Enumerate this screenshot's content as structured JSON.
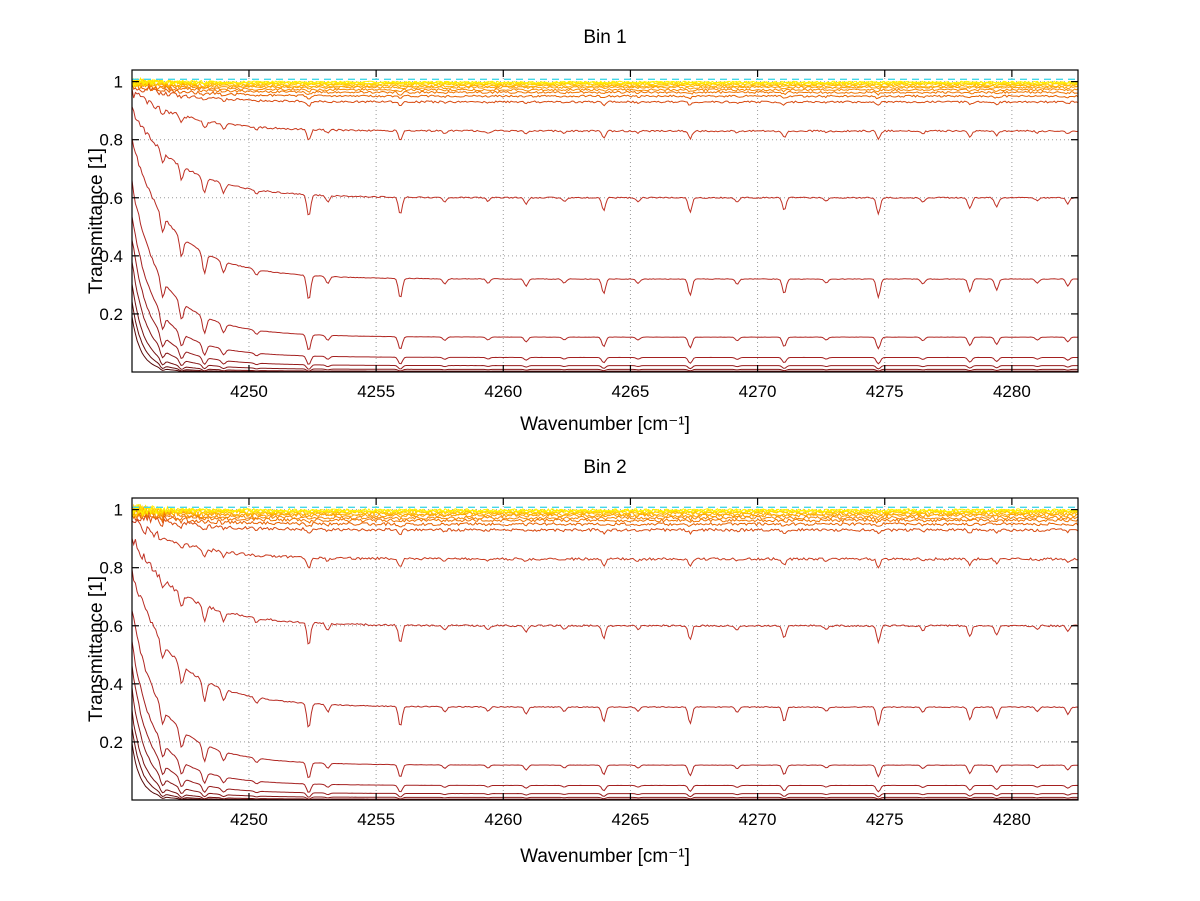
{
  "figure": {
    "background": "#FFFFFF"
  },
  "chart_data": [
    {
      "type": "line",
      "title": "Bin 1",
      "xlabel": "Wavenumber [cm⁻¹]",
      "ylabel": "Transmittance [1]",
      "xlim": [
        4245.4,
        4282.6
      ],
      "ylim": [
        0,
        1.04
      ],
      "xticks": [
        4250,
        4255,
        4260,
        4265,
        4270,
        4275,
        4280
      ],
      "yticks": [
        0.2,
        0.4,
        0.6,
        0.8,
        1
      ],
      "grid": true,
      "band_edge": {
        "x0": 4244.9,
        "tau": 2.2
      },
      "line_halfwidth": 0.1,
      "noise_seed": 11,
      "noise_scale": 1.0,
      "reference_line": {
        "level": 1.008,
        "color": "#44D7E8",
        "dash": "7 5"
      },
      "absorption_lines": [
        {
          "center": 4246.6,
          "strength": 0.1
        },
        {
          "center": 4247.35,
          "strength": 0.14
        },
        {
          "center": 4248.25,
          "strength": 0.17
        },
        {
          "center": 4249.0,
          "strength": 0.1
        },
        {
          "center": 4250.3,
          "strength": 0.05
        },
        {
          "center": 4252.35,
          "strength": 0.26
        },
        {
          "center": 4253.1,
          "strength": 0.07
        },
        {
          "center": 4255.95,
          "strength": 0.21
        },
        {
          "center": 4257.7,
          "strength": 0.05
        },
        {
          "center": 4259.4,
          "strength": 0.04
        },
        {
          "center": 4260.9,
          "strength": 0.07
        },
        {
          "center": 4262.4,
          "strength": 0.04
        },
        {
          "center": 4263.95,
          "strength": 0.15
        },
        {
          "center": 4265.3,
          "strength": 0.04
        },
        {
          "center": 4267.35,
          "strength": 0.17
        },
        {
          "center": 4269.2,
          "strength": 0.05
        },
        {
          "center": 4271.05,
          "strength": 0.15
        },
        {
          "center": 4272.7,
          "strength": 0.04
        },
        {
          "center": 4274.75,
          "strength": 0.19
        },
        {
          "center": 4276.5,
          "strength": 0.05
        },
        {
          "center": 4278.35,
          "strength": 0.13
        },
        {
          "center": 4279.4,
          "strength": 0.11
        },
        {
          "center": 4281.0,
          "strength": 0.04
        },
        {
          "center": 4282.2,
          "strength": 0.07
        }
      ],
      "series": [
        {
          "flat_level": 0.998,
          "color": "#FFF200"
        },
        {
          "flat_level": 0.996,
          "color": "#FFE600"
        },
        {
          "flat_level": 0.993,
          "color": "#FFD600"
        },
        {
          "flat_level": 0.99,
          "color": "#FFC400"
        },
        {
          "flat_level": 0.985,
          "color": "#FFB000"
        },
        {
          "flat_level": 0.98,
          "color": "#FC9C00"
        },
        {
          "flat_level": 0.972,
          "color": "#F58800"
        },
        {
          "flat_level": 0.963,
          "color": "#EE7400"
        },
        {
          "flat_level": 0.95,
          "color": "#E66000"
        },
        {
          "flat_level": 0.93,
          "color": "#D84A10"
        },
        {
          "flat_level": 0.83,
          "color": "#C93A1E"
        },
        {
          "flat_level": 0.6,
          "color": "#C03226"
        },
        {
          "flat_level": 0.32,
          "color": "#B82C24"
        },
        {
          "flat_level": 0.12,
          "color": "#B02622"
        },
        {
          "flat_level": 0.05,
          "color": "#A42020"
        },
        {
          "flat_level": 0.022,
          "color": "#961C1C"
        },
        {
          "flat_level": 0.009,
          "color": "#861818"
        },
        {
          "flat_level": 0.003,
          "color": "#761212"
        },
        {
          "flat_level": 0.001,
          "color": "#660E0E"
        },
        {
          "flat_level": 0.0003,
          "color": "#560A0A"
        }
      ]
    },
    {
      "type": "line",
      "title": "Bin 2",
      "xlabel": "Wavenumber [cm⁻¹]",
      "ylabel": "Transmittance [1]",
      "xlim": [
        4245.4,
        4282.6
      ],
      "ylim": [
        0,
        1.04
      ],
      "xticks": [
        4250,
        4255,
        4260,
        4265,
        4270,
        4275,
        4280
      ],
      "yticks": [
        0.2,
        0.4,
        0.6,
        0.8,
        1
      ],
      "grid": true,
      "band_edge": {
        "x0": 4244.9,
        "tau": 2.2
      },
      "line_halfwidth": 0.1,
      "noise_seed": 77,
      "noise_scale": 1.5,
      "reference_line": {
        "level": 1.008,
        "color": "#44D7E8",
        "dash": "7 5"
      },
      "absorption_lines": [
        {
          "center": 4246.6,
          "strength": 0.1
        },
        {
          "center": 4247.35,
          "strength": 0.14
        },
        {
          "center": 4248.25,
          "strength": 0.17
        },
        {
          "center": 4249.0,
          "strength": 0.1
        },
        {
          "center": 4250.3,
          "strength": 0.05
        },
        {
          "center": 4252.35,
          "strength": 0.26
        },
        {
          "center": 4253.1,
          "strength": 0.07
        },
        {
          "center": 4255.95,
          "strength": 0.21
        },
        {
          "center": 4257.7,
          "strength": 0.05
        },
        {
          "center": 4259.4,
          "strength": 0.04
        },
        {
          "center": 4260.9,
          "strength": 0.07
        },
        {
          "center": 4262.4,
          "strength": 0.04
        },
        {
          "center": 4263.95,
          "strength": 0.15
        },
        {
          "center": 4265.3,
          "strength": 0.04
        },
        {
          "center": 4267.35,
          "strength": 0.17
        },
        {
          "center": 4269.2,
          "strength": 0.05
        },
        {
          "center": 4271.05,
          "strength": 0.15
        },
        {
          "center": 4272.7,
          "strength": 0.04
        },
        {
          "center": 4274.75,
          "strength": 0.19
        },
        {
          "center": 4276.5,
          "strength": 0.05
        },
        {
          "center": 4278.35,
          "strength": 0.13
        },
        {
          "center": 4279.4,
          "strength": 0.11
        },
        {
          "center": 4281.0,
          "strength": 0.04
        },
        {
          "center": 4282.2,
          "strength": 0.07
        }
      ],
      "series": [
        {
          "flat_level": 0.998,
          "color": "#FFF200"
        },
        {
          "flat_level": 0.996,
          "color": "#FFE600"
        },
        {
          "flat_level": 0.993,
          "color": "#FFD600"
        },
        {
          "flat_level": 0.99,
          "color": "#FFC400"
        },
        {
          "flat_level": 0.985,
          "color": "#FFB000"
        },
        {
          "flat_level": 0.98,
          "color": "#FC9C00"
        },
        {
          "flat_level": 0.972,
          "color": "#F58800"
        },
        {
          "flat_level": 0.963,
          "color": "#EE7400"
        },
        {
          "flat_level": 0.95,
          "color": "#E66000"
        },
        {
          "flat_level": 0.93,
          "color": "#D84A10"
        },
        {
          "flat_level": 0.83,
          "color": "#C93A1E"
        },
        {
          "flat_level": 0.6,
          "color": "#C03226"
        },
        {
          "flat_level": 0.32,
          "color": "#B82C24"
        },
        {
          "flat_level": 0.12,
          "color": "#B02622"
        },
        {
          "flat_level": 0.05,
          "color": "#A42020"
        },
        {
          "flat_level": 0.022,
          "color": "#961C1C"
        },
        {
          "flat_level": 0.009,
          "color": "#861818"
        },
        {
          "flat_level": 0.003,
          "color": "#761212"
        },
        {
          "flat_level": 0.001,
          "color": "#660E0E"
        },
        {
          "flat_level": 0.0003,
          "color": "#560A0A"
        }
      ]
    }
  ]
}
